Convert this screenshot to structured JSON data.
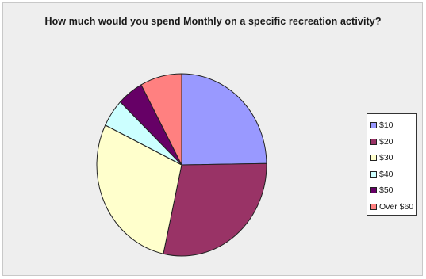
{
  "chart_data": {
    "type": "pie",
    "title": "How much would you spend Monthly on a specific recreation activity?",
    "categories": [
      "$10",
      "$20",
      "$30",
      "$40",
      "$50",
      "Over $60"
    ],
    "values": [
      25,
      29,
      29,
      5,
      5,
      8
    ],
    "colors": [
      "#9999ff",
      "#993366",
      "#ffffcc",
      "#ccffff",
      "#660066",
      "#ff8080"
    ],
    "legend_position": "right",
    "start_angle_deg": 90,
    "direction": "clockwise"
  }
}
